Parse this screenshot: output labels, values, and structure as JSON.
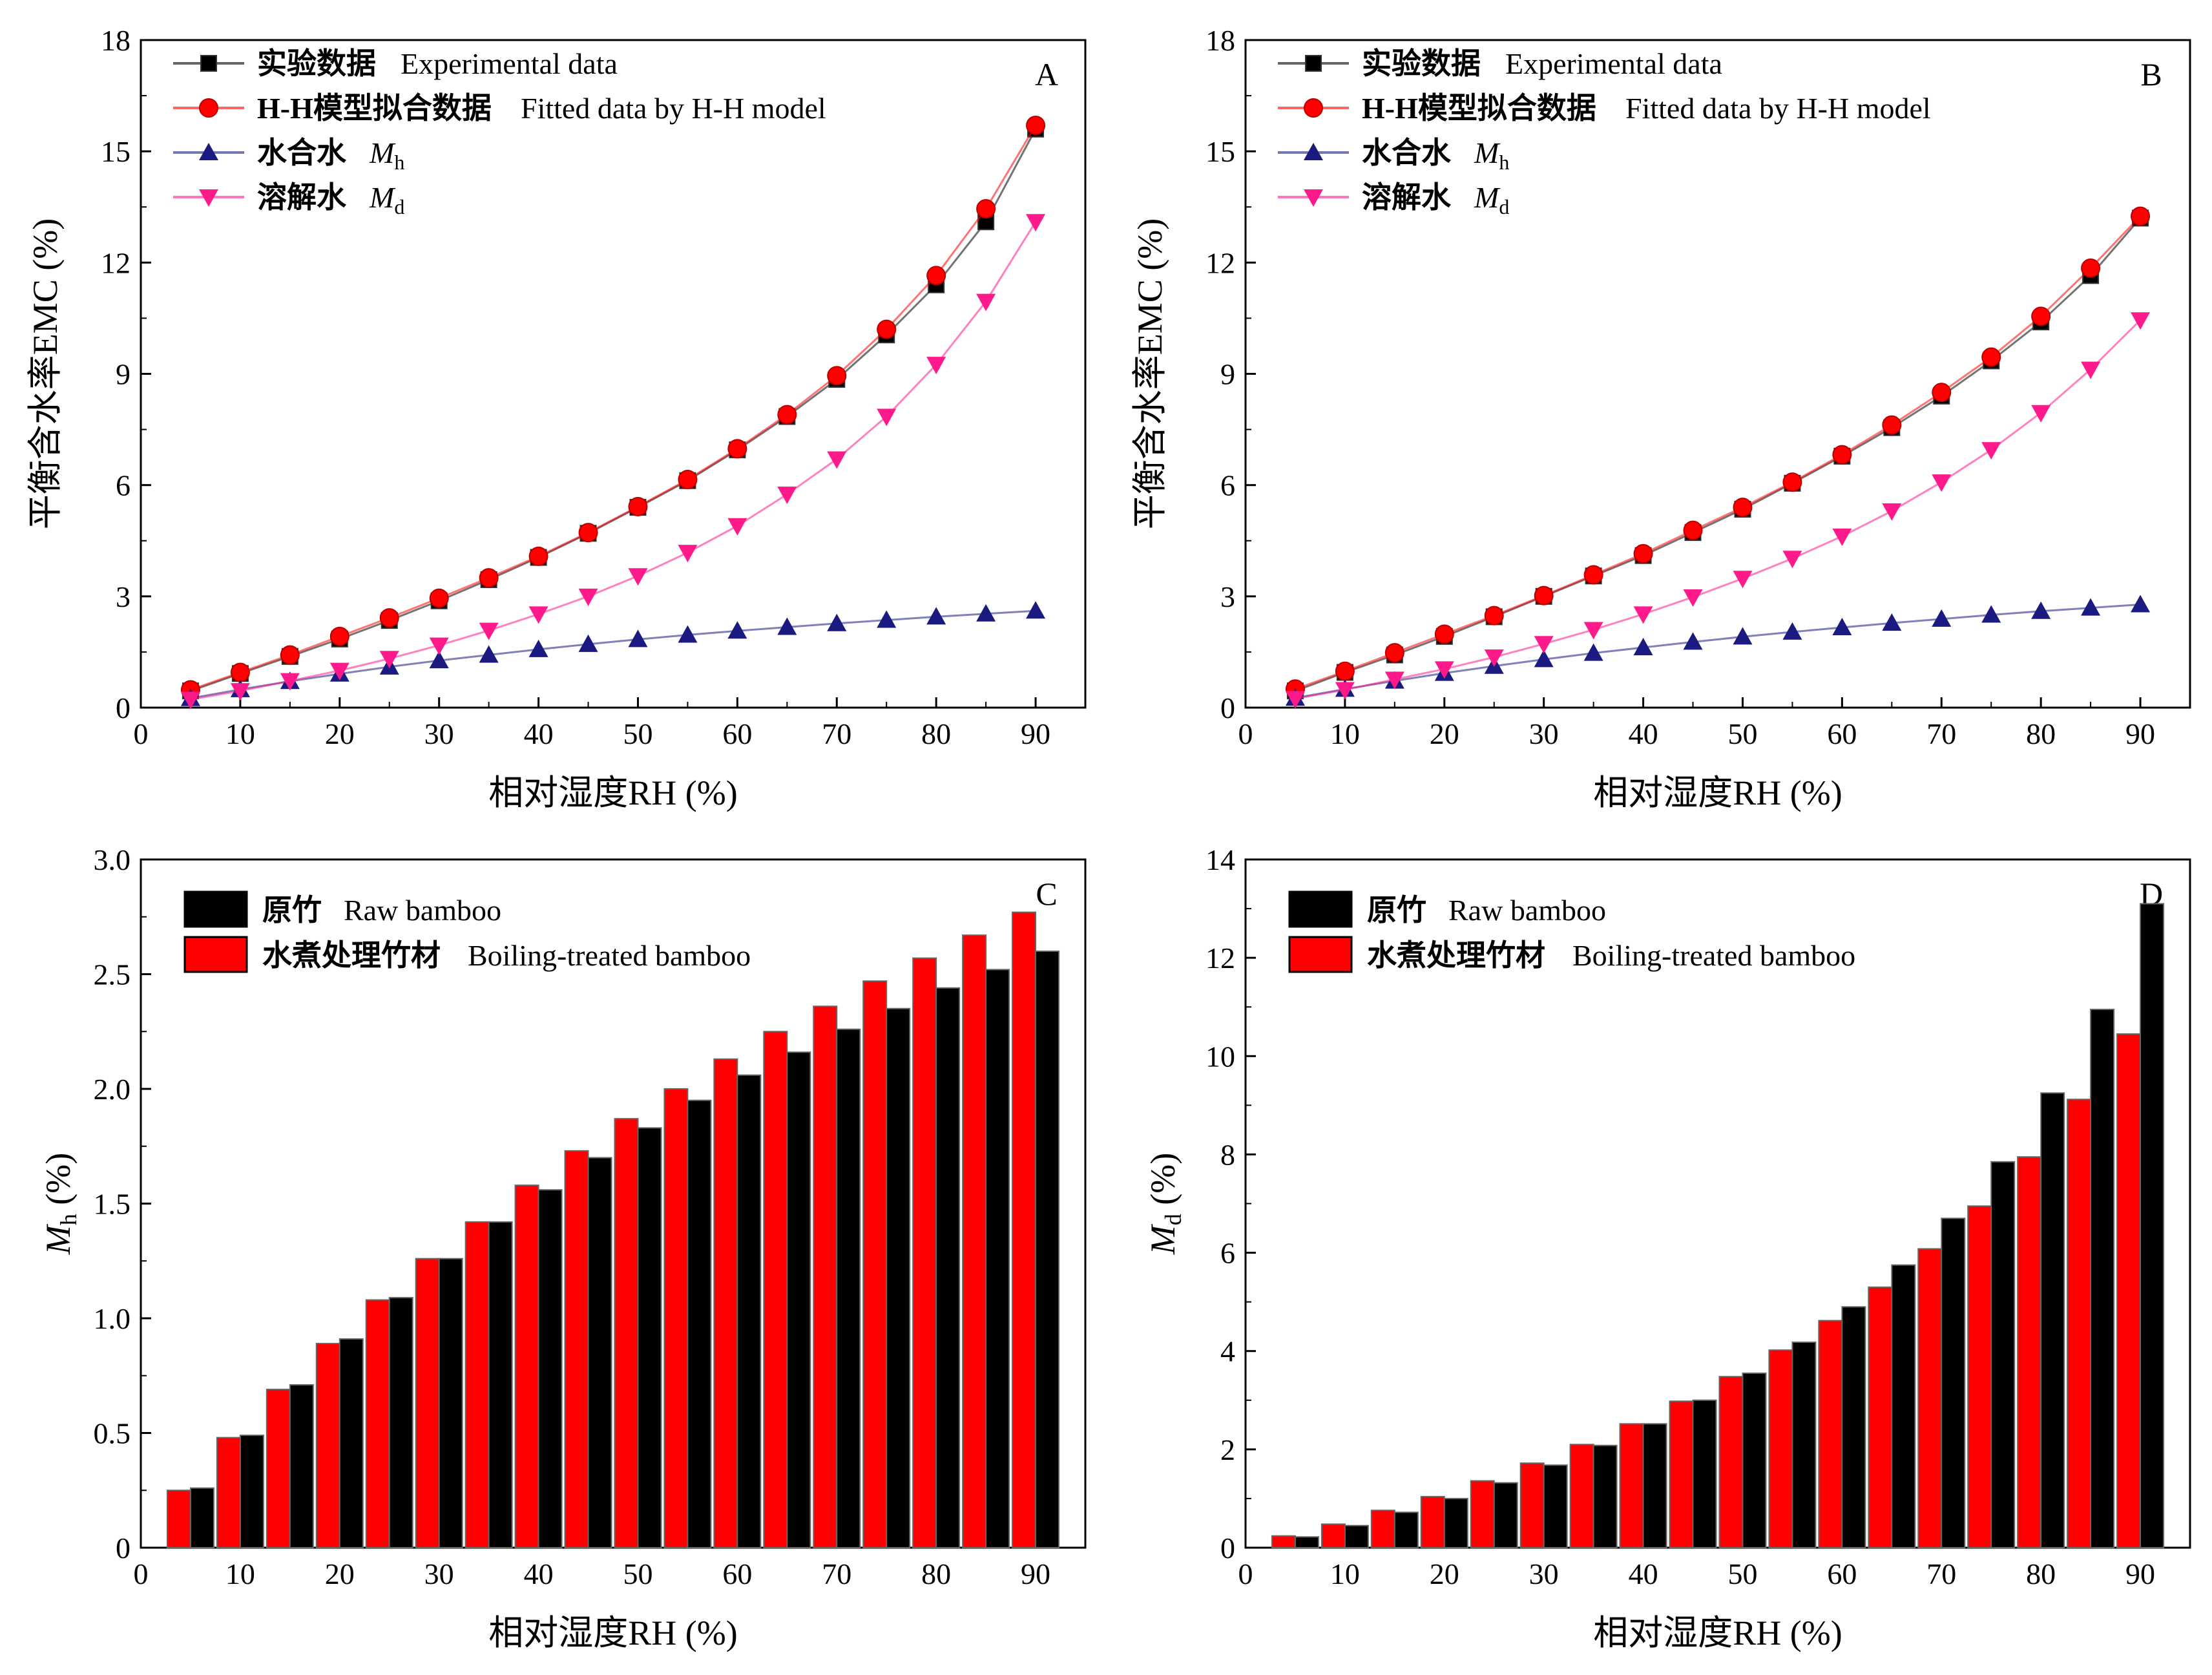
{
  "colors": {
    "experimental": "#000000",
    "fitted": "#ff0000",
    "hydrate": "#1a1a80",
    "dissolved": "#ff1a8c",
    "raw_bar": "#000000",
    "boiled_bar": "#ff0000"
  },
  "chart_data": [
    {
      "id": "A",
      "type": "line",
      "panel_label": "A",
      "xlabel": "相对湿度RH (%)",
      "ylabel": "平衡含水率EMC (%)",
      "xlim": [
        0,
        95
      ],
      "ylim": [
        0,
        18
      ],
      "xticks": [
        "0",
        "10",
        "20",
        "30",
        "40",
        "50",
        "60",
        "70",
        "80",
        "90"
      ],
      "yticks": [
        "0",
        "3",
        "6",
        "9",
        "12",
        "15",
        "18"
      ],
      "legend_position": "top-left",
      "x": [
        5,
        10,
        15,
        20,
        25,
        30,
        35,
        40,
        45,
        50,
        55,
        60,
        65,
        70,
        75,
        80,
        85,
        90
      ],
      "series": [
        {
          "name_cn": "实验数据",
          "name_en": "Experimental data",
          "sub": "",
          "marker": "square",
          "values": [
            0.45,
            0.92,
            1.38,
            1.85,
            2.35,
            2.88,
            3.45,
            4.05,
            4.7,
            5.4,
            6.12,
            6.95,
            7.85,
            8.85,
            10.05,
            11.4,
            13.1,
            15.6
          ]
        },
        {
          "name_cn": "H-H模型拟合数据",
          "name_en": "Fitted data by H-H model",
          "sub": "",
          "marker": "circle",
          "values": [
            0.48,
            0.95,
            1.42,
            1.92,
            2.42,
            2.95,
            3.5,
            4.08,
            4.72,
            5.42,
            6.15,
            6.98,
            7.9,
            8.95,
            10.2,
            11.65,
            13.45,
            15.7
          ]
        },
        {
          "name_cn": "水合水",
          "name_en": "M",
          "sub": "h",
          "marker": "triangle-up",
          "values": [
            0.25,
            0.49,
            0.71,
            0.91,
            1.1,
            1.27,
            1.42,
            1.57,
            1.71,
            1.84,
            1.96,
            2.07,
            2.17,
            2.27,
            2.36,
            2.45,
            2.53,
            2.61
          ]
        },
        {
          "name_cn": "溶解水",
          "name_en": "M",
          "sub": "d",
          "marker": "triangle-down",
          "values": [
            0.22,
            0.45,
            0.72,
            1.0,
            1.32,
            1.68,
            2.08,
            2.52,
            3.0,
            3.55,
            4.18,
            4.9,
            5.75,
            6.7,
            7.85,
            9.25,
            10.95,
            13.1
          ]
        }
      ]
    },
    {
      "id": "B",
      "type": "line",
      "panel_label": "B",
      "xlabel": "相对湿度RH (%)",
      "ylabel": "平衡含水率EMC (%)",
      "xlim": [
        0,
        95
      ],
      "ylim": [
        0,
        18
      ],
      "xticks": [
        "0",
        "10",
        "20",
        "30",
        "40",
        "50",
        "60",
        "70",
        "80",
        "90"
      ],
      "yticks": [
        "0",
        "3",
        "6",
        "9",
        "12",
        "15",
        "18"
      ],
      "legend_position": "top-left",
      "x": [
        5,
        10,
        15,
        20,
        25,
        30,
        35,
        40,
        45,
        50,
        55,
        60,
        65,
        70,
        75,
        80,
        85,
        90
      ],
      "series": [
        {
          "name_cn": "实验数据",
          "name_en": "Experimental data",
          "sub": "",
          "marker": "square",
          "values": [
            0.45,
            0.95,
            1.42,
            1.92,
            2.45,
            3.0,
            3.55,
            4.1,
            4.72,
            5.35,
            6.05,
            6.78,
            7.55,
            8.4,
            9.35,
            10.4,
            11.65,
            13.2
          ]
        },
        {
          "name_cn": "H-H模型拟合数据",
          "name_en": "Fitted data by H-H model",
          "sub": "",
          "marker": "circle",
          "values": [
            0.5,
            0.98,
            1.48,
            1.98,
            2.48,
            3.02,
            3.58,
            4.15,
            4.78,
            5.4,
            6.08,
            6.82,
            7.62,
            8.5,
            9.45,
            10.55,
            11.85,
            13.25
          ]
        },
        {
          "name_cn": "水合水",
          "name_en": "M",
          "sub": "h",
          "marker": "triangle-up",
          "values": [
            0.26,
            0.5,
            0.72,
            0.93,
            1.12,
            1.3,
            1.47,
            1.62,
            1.77,
            1.91,
            2.04,
            2.16,
            2.28,
            2.39,
            2.5,
            2.6,
            2.69,
            2.78
          ]
        },
        {
          "name_cn": "溶解水",
          "name_en": "M",
          "sub": "d",
          "marker": "triangle-down",
          "values": [
            0.24,
            0.48,
            0.76,
            1.04,
            1.36,
            1.72,
            2.1,
            2.52,
            2.98,
            3.48,
            4.02,
            4.62,
            5.3,
            6.08,
            6.95,
            7.95,
            9.12,
            10.45
          ]
        }
      ]
    },
    {
      "id": "C",
      "type": "bar",
      "panel_label": "C",
      "xlabel": "相对湿度RH (%)",
      "ylabel": "M",
      "ylabel_sub": "h",
      "ylabel_unit": " (%)",
      "xlim": [
        0,
        95
      ],
      "ylim": [
        0,
        3.0
      ],
      "xticks": [
        "0",
        "10",
        "20",
        "30",
        "40",
        "50",
        "60",
        "70",
        "80",
        "90"
      ],
      "yticks": [
        "0",
        "0.5",
        "1.0",
        "1.5",
        "2.0",
        "2.5",
        "3.0"
      ],
      "legend_position": "top-left",
      "x": [
        5,
        10,
        15,
        20,
        25,
        30,
        35,
        40,
        45,
        50,
        55,
        60,
        65,
        70,
        75,
        80,
        85,
        90
      ],
      "series": [
        {
          "name_cn": "原竹",
          "name_en": "Raw bamboo",
          "values": [
            0.26,
            0.49,
            0.71,
            0.91,
            1.09,
            1.26,
            1.42,
            1.56,
            1.7,
            1.83,
            1.95,
            2.06,
            2.16,
            2.26,
            2.35,
            2.44,
            2.52,
            2.6
          ]
        },
        {
          "name_cn": "水煮处理竹材",
          "name_en": "Boiling-treated bamboo",
          "values": [
            0.25,
            0.48,
            0.69,
            0.89,
            1.08,
            1.26,
            1.42,
            1.58,
            1.73,
            1.87,
            2.0,
            2.13,
            2.25,
            2.36,
            2.47,
            2.57,
            2.67,
            2.77
          ]
        }
      ]
    },
    {
      "id": "D",
      "type": "bar",
      "panel_label": "D",
      "xlabel": "相对湿度RH (%)",
      "ylabel": "M",
      "ylabel_sub": "d",
      "ylabel_unit": " (%)",
      "xlim": [
        0,
        95
      ],
      "ylim": [
        0,
        14
      ],
      "xticks": [
        "0",
        "10",
        "20",
        "30",
        "40",
        "50",
        "60",
        "70",
        "80",
        "90"
      ],
      "yticks": [
        "0",
        "2",
        "4",
        "6",
        "8",
        "10",
        "12",
        "14"
      ],
      "legend_position": "top-left",
      "x": [
        5,
        10,
        15,
        20,
        25,
        30,
        35,
        40,
        45,
        50,
        55,
        60,
        65,
        70,
        75,
        80,
        85,
        90
      ],
      "series": [
        {
          "name_cn": "原竹",
          "name_en": "Raw bamboo",
          "values": [
            0.22,
            0.45,
            0.72,
            1.0,
            1.32,
            1.68,
            2.08,
            2.52,
            3.0,
            3.55,
            4.18,
            4.9,
            5.75,
            6.7,
            7.85,
            9.25,
            10.95,
            13.1
          ]
        },
        {
          "name_cn": "水煮处理竹材",
          "name_en": "Boiling-treated bamboo",
          "values": [
            0.24,
            0.48,
            0.76,
            1.04,
            1.36,
            1.72,
            2.1,
            2.52,
            2.98,
            3.48,
            4.02,
            4.62,
            5.3,
            6.08,
            6.95,
            7.95,
            9.12,
            10.45
          ]
        }
      ]
    }
  ]
}
